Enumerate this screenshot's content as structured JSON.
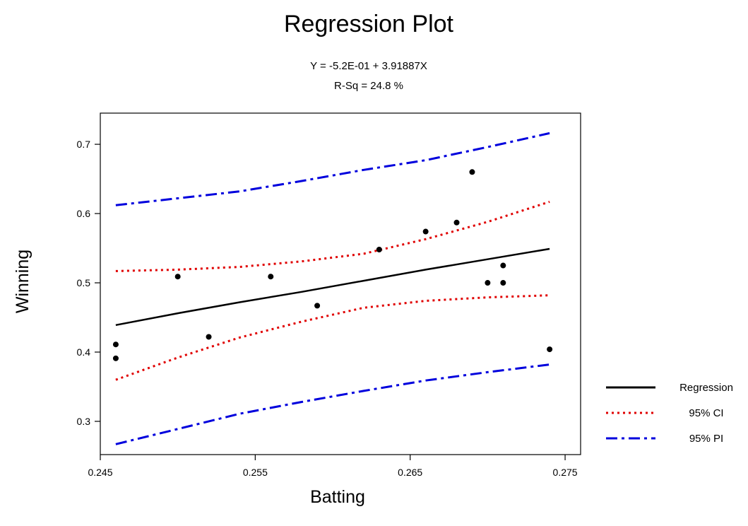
{
  "chart_data": {
    "type": "scatter",
    "title": "Regression Plot",
    "equation": "Y = -5.2E-01 + 3.91887X",
    "r_squared": "R-Sq = 24.8 %",
    "xlabel": "Batting",
    "ylabel": "Winning",
    "xlim": [
      0.245,
      0.276
    ],
    "ylim": [
      0.252,
      0.745
    ],
    "x_ticks": [
      0.245,
      0.255,
      0.265,
      0.275
    ],
    "x_tick_labels": [
      "0.245",
      "0.255",
      "0.265",
      "0.275"
    ],
    "y_ticks": [
      0.3,
      0.4,
      0.5,
      0.6,
      0.7
    ],
    "y_tick_labels": [
      "0.3",
      "0.4",
      "0.5",
      "0.6",
      "0.7"
    ],
    "grid": false,
    "legend_position": "right",
    "points": [
      {
        "x": 0.246,
        "y": 0.411
      },
      {
        "x": 0.246,
        "y": 0.391
      },
      {
        "x": 0.25,
        "y": 0.509
      },
      {
        "x": 0.252,
        "y": 0.422
      },
      {
        "x": 0.256,
        "y": 0.509
      },
      {
        "x": 0.259,
        "y": 0.467
      },
      {
        "x": 0.263,
        "y": 0.548
      },
      {
        "x": 0.266,
        "y": 0.574
      },
      {
        "x": 0.268,
        "y": 0.587
      },
      {
        "x": 0.269,
        "y": 0.66
      },
      {
        "x": 0.27,
        "y": 0.5
      },
      {
        "x": 0.271,
        "y": 0.525
      },
      {
        "x": 0.271,
        "y": 0.5
      },
      {
        "x": 0.274,
        "y": 0.404
      }
    ],
    "series": [
      {
        "name": "Regression",
        "color": "#000000",
        "style": "solid",
        "x": [
          0.246,
          0.25,
          0.254,
          0.258,
          0.262,
          0.266,
          0.27,
          0.274
        ],
        "y": [
          0.439,
          0.456,
          0.472,
          0.487,
          0.503,
          0.519,
          0.534,
          0.549
        ]
      },
      {
        "name": "95% CI",
        "color": "#e00000",
        "style": "dotted",
        "x": [
          0.246,
          0.25,
          0.254,
          0.258,
          0.262,
          0.266,
          0.27,
          0.274
        ],
        "y": [
          0.517,
          0.519,
          0.523,
          0.531,
          0.542,
          0.563,
          0.588,
          0.617
        ]
      },
      {
        "name": "95% CI",
        "color": "#e00000",
        "style": "dotted",
        "x": [
          0.246,
          0.25,
          0.254,
          0.258,
          0.262,
          0.266,
          0.27,
          0.274
        ],
        "y": [
          0.36,
          0.392,
          0.421,
          0.444,
          0.464,
          0.474,
          0.479,
          0.482
        ]
      },
      {
        "name": "95% PI",
        "color": "#0000dd",
        "style": "dashdot",
        "x": [
          0.246,
          0.25,
          0.254,
          0.258,
          0.262,
          0.266,
          0.27,
          0.274
        ],
        "y": [
          0.612,
          0.622,
          0.632,
          0.647,
          0.663,
          0.677,
          0.696,
          0.716
        ]
      },
      {
        "name": "95% PI",
        "color": "#0000dd",
        "style": "dashdot",
        "x": [
          0.246,
          0.25,
          0.254,
          0.258,
          0.262,
          0.266,
          0.27,
          0.274
        ],
        "y": [
          0.267,
          0.289,
          0.311,
          0.328,
          0.344,
          0.359,
          0.371,
          0.382
        ]
      }
    ],
    "legend": [
      {
        "label": "Regression",
        "color": "#000000",
        "style": "solid"
      },
      {
        "label": "95% CI",
        "color": "#e00000",
        "style": "dotted"
      },
      {
        "label": "95% PI",
        "color": "#0000dd",
        "style": "dashdot"
      }
    ]
  }
}
